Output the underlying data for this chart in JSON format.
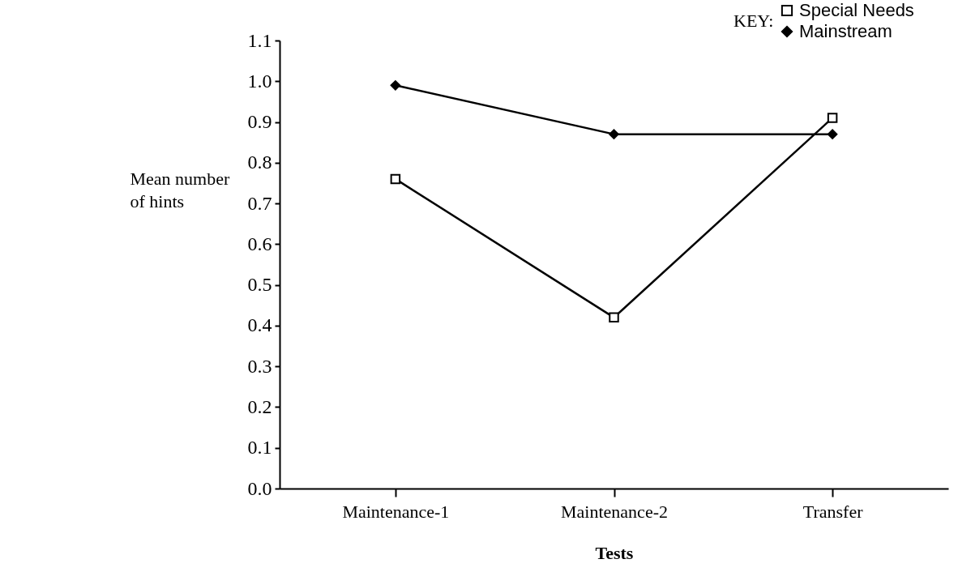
{
  "chart_data": {
    "type": "line",
    "xlabel": "Tests",
    "ylabel": "Mean number of hints",
    "legend_title": "KEY:",
    "legend": "top right",
    "grid": false,
    "categories": [
      "Maintenance-1",
      "Maintenance-2",
      "Transfer"
    ],
    "series": [
      {
        "name": "Special Needs",
        "color": "#000000",
        "marker": "square",
        "values": [
          0.76,
          0.42,
          0.91
        ]
      },
      {
        "name": "Mainstream",
        "color": "#000000",
        "marker": "diamond",
        "values": [
          0.99,
          0.87,
          0.87
        ]
      }
    ],
    "ylim": [
      0,
      1.1
    ],
    "yticks": [
      {
        "value": 0,
        "label": "0.0"
      },
      0.1,
      0.2,
      0.3,
      0.4,
      0.5,
      0.6,
      0.7,
      0.8,
      0.9,
      {
        "value": 1,
        "label": "1.0"
      },
      1.1
    ]
  }
}
